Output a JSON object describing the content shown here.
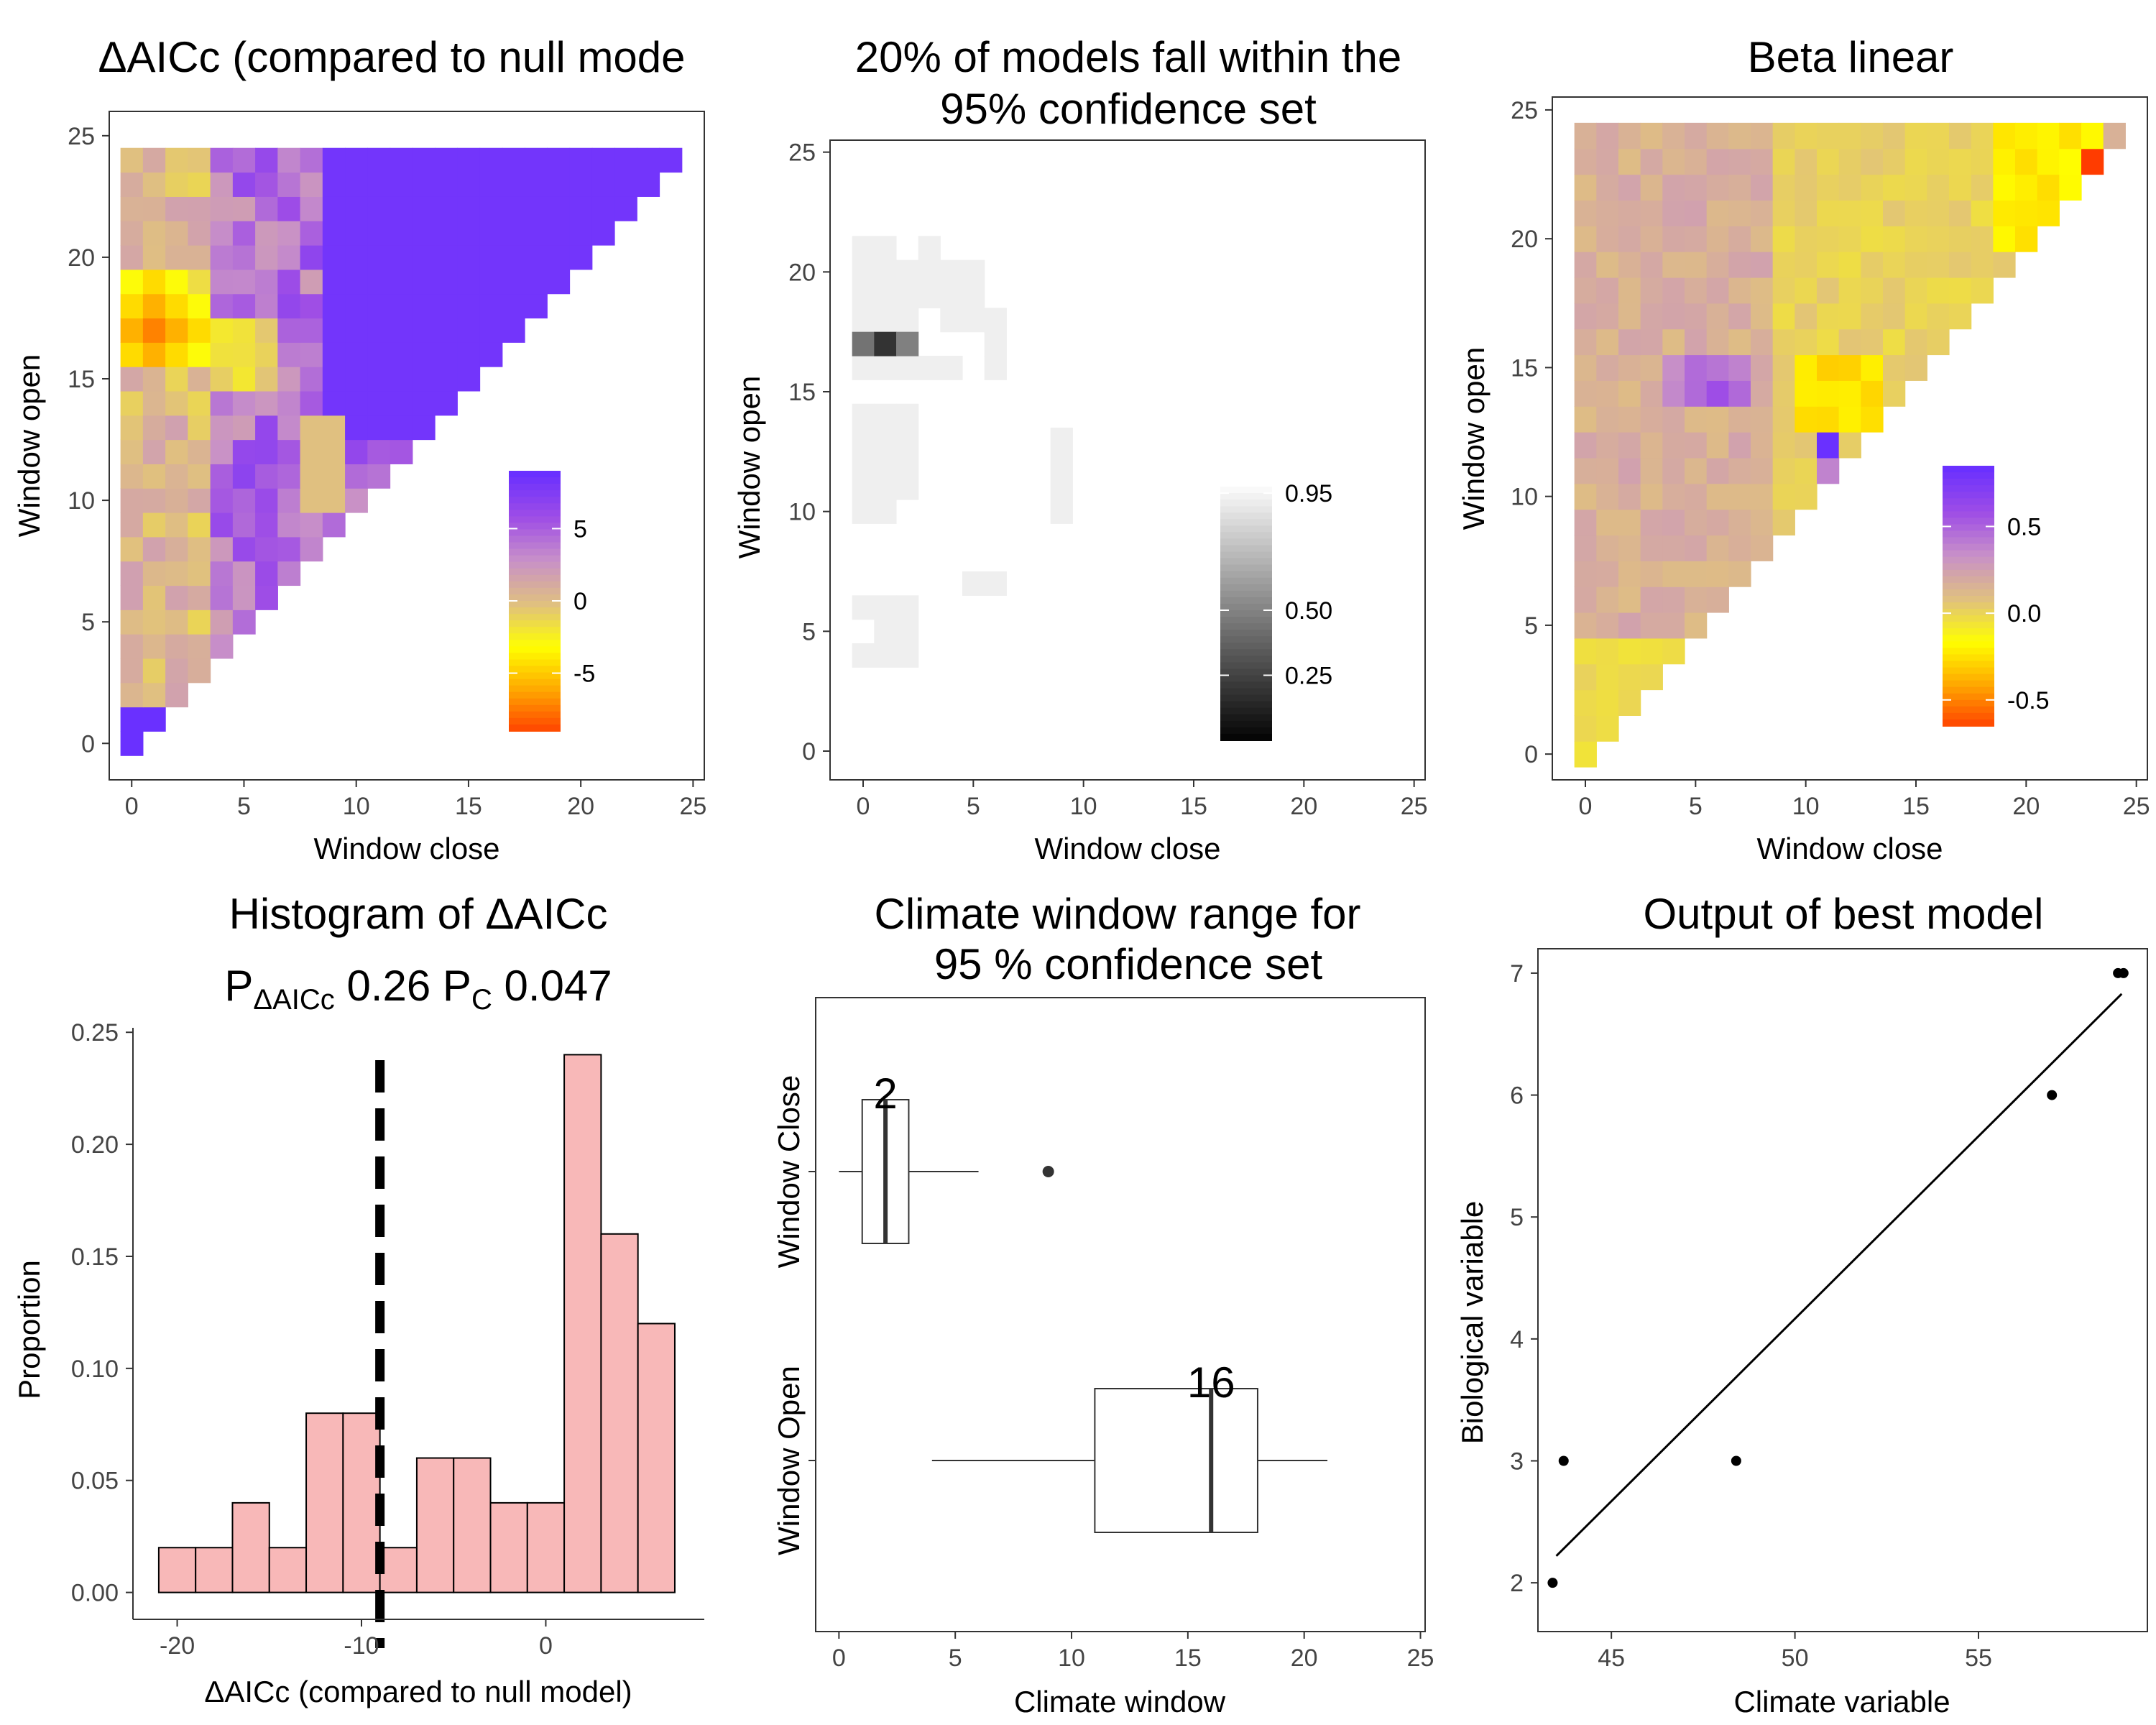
{
  "chart_data": [
    {
      "id": "daicc-heatmap",
      "type": "heatmap",
      "title": "ΔAICc (compared to null mode",
      "xlabel": "Window close",
      "ylabel": "Window open",
      "xlim": [
        -1,
        25.5
      ],
      "ylim": [
        -1.5,
        26
      ],
      "xticks": [
        0,
        5,
        10,
        15,
        20,
        25
      ],
      "yticks": [
        0,
        5,
        10,
        15,
        20,
        25
      ],
      "legend": {
        "ticks": [
          5,
          0,
          -5
        ],
        "range": [
          -9,
          9
        ],
        "placement": "bottom-right",
        "colors": [
          "#ff3c00",
          "#ffa500",
          "#ffff00",
          "#e0c080",
          "#c890c8",
          "#9e4de6",
          "#6a30ff"
        ]
      },
      "seed": 1
    },
    {
      "id": "confidence-heatmap",
      "type": "heatmap",
      "title": [
        "20% of models fall within the",
        "95% confidence set"
      ],
      "xlabel": "Window close",
      "ylabel": "Window open",
      "xlim": [
        -1.5,
        25.5
      ],
      "ylim": [
        -1.2,
        25.5
      ],
      "xticks": [
        0,
        5,
        10,
        15,
        20,
        25
      ],
      "yticks": [
        0,
        5,
        10,
        15,
        20,
        25
      ],
      "legend": {
        "ticks": [
          0.95,
          0.5,
          0.25
        ],
        "tick_labels": [
          "0.95",
          "0.50",
          "0.25"
        ],
        "range": [
          0,
          1
        ],
        "placement": "bottom-right",
        "colors": [
          "#000000",
          "#ffffff"
        ]
      },
      "light_cells": [
        [
          0,
          16
        ],
        [
          0,
          17
        ],
        [
          0,
          18
        ],
        [
          0,
          19
        ],
        [
          0,
          20
        ],
        [
          0,
          21
        ],
        [
          1,
          16
        ],
        [
          1,
          18
        ],
        [
          1,
          19
        ],
        [
          1,
          20
        ],
        [
          1,
          21
        ],
        [
          2,
          16
        ],
        [
          2,
          18
        ],
        [
          2,
          19
        ],
        [
          2,
          20
        ],
        [
          3,
          16
        ],
        [
          3,
          19
        ],
        [
          3,
          20
        ],
        [
          3,
          21
        ],
        [
          4,
          16
        ],
        [
          4,
          18
        ],
        [
          4,
          19
        ],
        [
          4,
          20
        ],
        [
          5,
          18
        ],
        [
          5,
          19
        ],
        [
          5,
          20
        ],
        [
          6,
          16
        ],
        [
          6,
          17
        ],
        [
          6,
          18
        ],
        [
          0,
          11
        ],
        [
          0,
          12
        ],
        [
          0,
          13
        ],
        [
          0,
          14
        ],
        [
          0,
          10
        ],
        [
          1,
          10
        ],
        [
          1,
          11
        ],
        [
          1,
          12
        ],
        [
          1,
          13
        ],
        [
          1,
          14
        ],
        [
          2,
          11
        ],
        [
          2,
          12
        ],
        [
          2,
          13
        ],
        [
          2,
          14
        ],
        [
          1,
          4
        ],
        [
          1,
          5
        ],
        [
          1,
          6
        ],
        [
          2,
          4
        ],
        [
          2,
          5
        ],
        [
          2,
          6
        ],
        [
          0,
          6
        ],
        [
          0,
          4
        ],
        [
          9,
          10
        ],
        [
          9,
          11
        ],
        [
          9,
          12
        ],
        [
          9,
          13
        ],
        [
          6,
          7
        ],
        [
          5,
          7
        ]
      ],
      "dark_cells": [
        [
          0,
          17,
          0.45
        ],
        [
          1,
          17,
          0.2
        ],
        [
          2,
          17,
          0.5
        ]
      ]
    },
    {
      "id": "beta-heatmap",
      "type": "heatmap",
      "title": "Beta linear",
      "xlabel": "Window close",
      "ylabel": "Window open",
      "xlim": [
        -1.5,
        25.5
      ],
      "ylim": [
        -1,
        25.5
      ],
      "xticks": [
        0,
        5,
        10,
        15,
        20,
        25
      ],
      "yticks": [
        0,
        5,
        10,
        15,
        20,
        25
      ],
      "legend": {
        "ticks": [
          0.5,
          0.0,
          -0.5
        ],
        "tick_labels": [
          "0.5",
          "0.0",
          "-0.5"
        ],
        "range": [
          -0.65,
          0.85
        ],
        "placement": "bottom-right",
        "colors": [
          "#ff3c00",
          "#ffa500",
          "#ffff00",
          "#e0c080",
          "#c890c8",
          "#9e4de6",
          "#6a30ff"
        ]
      },
      "seed": 2
    },
    {
      "id": "daicc-histogram",
      "type": "bar",
      "title": "Histogram of ΔAICc",
      "subtitle": {
        "p1_label": "P",
        "p1_sub": "ΔAICc",
        "p1_value": "0.26",
        "p2_label": "P",
        "p2_sub": "C",
        "p2_value": "0.047"
      },
      "xlabel": "ΔAICc (compared to null model)",
      "ylabel": "Proportion",
      "xlim": [
        -22.4,
        8.6
      ],
      "ylim": [
        -0.012,
        0.252
      ],
      "xticks": [
        -20,
        -10,
        0
      ],
      "yticks": [
        0.0,
        0.05,
        0.1,
        0.15,
        0.2,
        0.25
      ],
      "ytick_labels": [
        "0.00",
        "0.05",
        "0.10",
        "0.15",
        "0.20",
        "0.25"
      ],
      "bin_start": -21,
      "bin_width": 2,
      "values": [
        0.02,
        0.02,
        0.04,
        0.02,
        0.08,
        0.08,
        0.02,
        0.06,
        0.06,
        0.04,
        0.04,
        0.24,
        0.16,
        0.12
      ],
      "fill": "#f8b8b8",
      "vline": -9
    },
    {
      "id": "window-boxplot",
      "type": "box",
      "title": [
        "Climate window range for",
        "95 % confidence set"
      ],
      "xlabel": "Climate window",
      "xlim": [
        -1,
        25.2
      ],
      "xticks": [
        0,
        5,
        10,
        15,
        20,
        25
      ],
      "boxes": [
        {
          "label": "Window Close",
          "whisker_low": 0,
          "q1": 1,
          "median": 2,
          "q3": 3,
          "whisker_high": 6,
          "outliers": [
            9
          ],
          "median_label": "2"
        },
        {
          "label": "Window Open",
          "whisker_low": 4,
          "q1": 11,
          "median": 16,
          "q3": 18,
          "whisker_high": 21,
          "outliers": [],
          "median_label": "16"
        }
      ]
    },
    {
      "id": "best-model-scatter",
      "type": "scatter",
      "title": "Output of best model",
      "xlabel": "Climate variable",
      "ylabel": "Biological variable",
      "xlim": [
        43,
        59.6
      ],
      "ylim": [
        1.6,
        7.2
      ],
      "xticks": [
        45,
        50,
        55
      ],
      "yticks": [
        2,
        3,
        4,
        5,
        6,
        7
      ],
      "x": [
        43.4,
        43.7,
        48.4,
        57.0,
        58.8,
        58.95
      ],
      "y": [
        2,
        3,
        3,
        6,
        7,
        7
      ],
      "fit_line": {
        "x": [
          43.5,
          58.9
        ],
        "y": [
          2.22,
          6.83
        ]
      }
    }
  ]
}
